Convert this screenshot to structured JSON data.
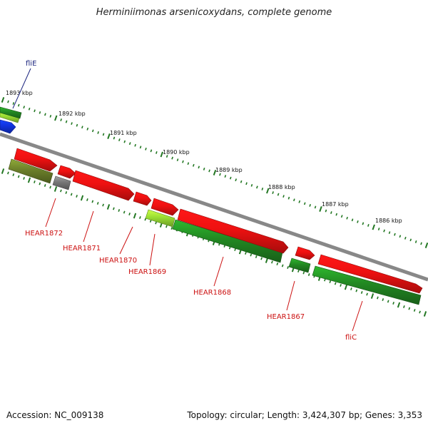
{
  "title": "Herminiimonas arsenicoxydans, complete genome",
  "footer": {
    "accession": "Accession: NC_009138",
    "topology": "Topology: circular; Length: 3,424,307 bp; Genes: 3,353"
  },
  "colors": {
    "forward_gene": "#ee1111",
    "reverse_gene": "#228822",
    "olive_gene": "#6b7f2a",
    "gray_gene": "#777777",
    "blue_gene": "#1133dd",
    "lime_gene": "#99dd33",
    "backbone": "#888888",
    "tick": "#227722",
    "gene_label": "#cc1111",
    "flie_label": "#1a237e"
  },
  "scale_labels": [
    "1893 kbp",
    "1892 kbp",
    "1891 kbp",
    "1890 kbp",
    "1889 kbp",
    "1888 kbp",
    "1887 kbp",
    "1886 kbp"
  ],
  "gene_labels": [
    {
      "name": "fliE",
      "color": "flie"
    },
    {
      "name": "HEAR1872",
      "color": "red"
    },
    {
      "name": "HEAR1871",
      "color": "red"
    },
    {
      "name": "HEAR1870",
      "color": "red"
    },
    {
      "name": "HEAR1869",
      "color": "red"
    },
    {
      "name": "HEAR1868",
      "color": "red"
    },
    {
      "name": "HEAR1867",
      "color": "red"
    },
    {
      "name": "fliC",
      "color": "red"
    }
  ]
}
